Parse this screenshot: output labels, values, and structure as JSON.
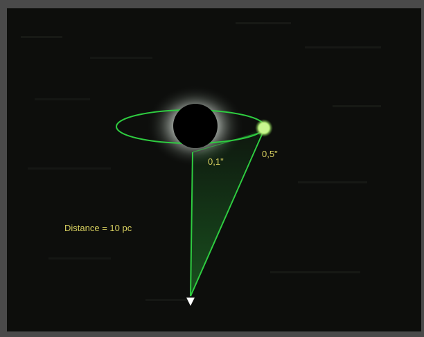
{
  "diagram": {
    "distance_label": "Distance = 10 pc",
    "inner_angle_label": "0,1\"",
    "outer_angle_label": "0,5\"",
    "colors": {
      "background": "#0d0e0c",
      "frame": "#4a4a4a",
      "lines": "#2ecc40",
      "planet": "#b8f07a",
      "text": "#d8d060",
      "observer": "#ffffff"
    }
  }
}
